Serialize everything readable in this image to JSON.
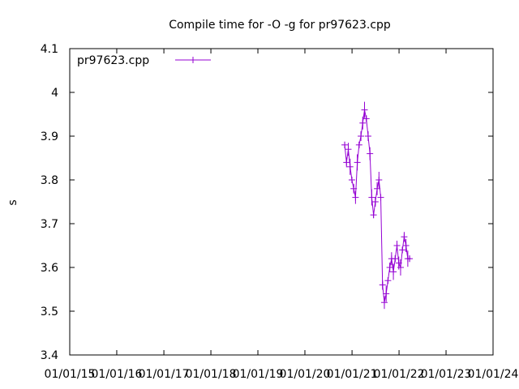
{
  "chart_data": {
    "type": "line",
    "title": "Compile time for -O -g for pr97623.cpp",
    "xlabel": "",
    "ylabel": "s",
    "ylim": [
      3.4,
      4.1
    ],
    "y_ticks": [
      "3.4",
      "3.5",
      "3.6",
      "3.7",
      "3.8",
      "3.9",
      "4",
      "4.1"
    ],
    "xlim": [
      "2015-01-01",
      "2024-01-01"
    ],
    "x_ticks": [
      "01/01/15",
      "01/01/16",
      "01/01/17",
      "01/01/18",
      "01/01/19",
      "01/01/20",
      "01/01/21",
      "01/01/22",
      "01/01/23",
      "01/01/24"
    ],
    "legend_position": "top-left",
    "grid": false,
    "series": [
      {
        "name": "pr97623.cpp",
        "color": "#9400d3",
        "marker": "plus",
        "error_bars": true,
        "points": [
          {
            "x": "2020-11-05",
            "y": 3.88
          },
          {
            "x": "2020-11-19",
            "y": 3.84
          },
          {
            "x": "2020-12-03",
            "y": 3.87
          },
          {
            "x": "2020-12-17",
            "y": 3.83
          },
          {
            "x": "2020-12-31",
            "y": 3.8
          },
          {
            "x": "2021-01-14",
            "y": 3.78
          },
          {
            "x": "2021-01-28",
            "y": 3.76
          },
          {
            "x": "2021-02-11",
            "y": 3.84
          },
          {
            "x": "2021-02-25",
            "y": 3.88
          },
          {
            "x": "2021-03-11",
            "y": 3.9
          },
          {
            "x": "2021-03-25",
            "y": 3.93
          },
          {
            "x": "2021-04-08",
            "y": 3.96
          },
          {
            "x": "2021-04-22",
            "y": 3.94
          },
          {
            "x": "2021-05-06",
            "y": 3.9
          },
          {
            "x": "2021-05-20",
            "y": 3.86
          },
          {
            "x": "2021-06-03",
            "y": 3.76
          },
          {
            "x": "2021-06-17",
            "y": 3.72
          },
          {
            "x": "2021-07-01",
            "y": 3.75
          },
          {
            "x": "2021-07-15",
            "y": 3.78
          },
          {
            "x": "2021-07-29",
            "y": 3.8
          },
          {
            "x": "2021-08-12",
            "y": 3.76
          },
          {
            "x": "2021-08-26",
            "y": 3.56
          },
          {
            "x": "2021-09-09",
            "y": 3.52
          },
          {
            "x": "2021-09-23",
            "y": 3.54
          },
          {
            "x": "2021-10-07",
            "y": 3.57
          },
          {
            "x": "2021-10-21",
            "y": 3.6
          },
          {
            "x": "2021-11-04",
            "y": 3.62
          },
          {
            "x": "2021-11-18",
            "y": 3.59
          },
          {
            "x": "2021-12-02",
            "y": 3.62
          },
          {
            "x": "2021-12-16",
            "y": 3.65
          },
          {
            "x": "2021-12-30",
            "y": 3.61
          },
          {
            "x": "2022-01-13",
            "y": 3.6
          },
          {
            "x": "2022-01-27",
            "y": 3.64
          },
          {
            "x": "2022-02-10",
            "y": 3.67
          },
          {
            "x": "2022-02-24",
            "y": 3.65
          },
          {
            "x": "2022-03-10",
            "y": 3.62
          },
          {
            "x": "2022-03-24",
            "y": 3.62
          }
        ]
      }
    ]
  }
}
